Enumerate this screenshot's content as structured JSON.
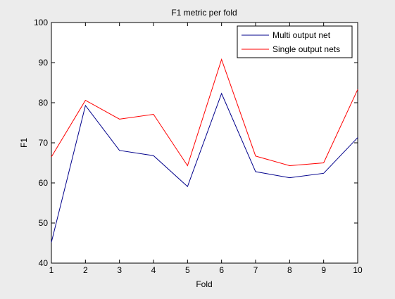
{
  "chart_data": {
    "type": "line",
    "title": "F1 metric per fold",
    "xlabel": "Fold",
    "ylabel": "F1",
    "x": [
      1,
      2,
      3,
      4,
      5,
      6,
      7,
      8,
      9,
      10
    ],
    "xlim": [
      1,
      10
    ],
    "ylim": [
      40,
      100
    ],
    "xticks": [
      "1",
      "2",
      "3",
      "4",
      "5",
      "6",
      "7",
      "8",
      "9",
      "10"
    ],
    "yticks": [
      "40",
      "50",
      "60",
      "70",
      "80",
      "90",
      "100"
    ],
    "grid": false,
    "legend_position": "top-right",
    "series": [
      {
        "name": "Multi output net",
        "color": "#00008b",
        "values": [
          45.2,
          79.3,
          68.1,
          66.8,
          59.1,
          82.3,
          62.8,
          61.3,
          62.4,
          71.3
        ]
      },
      {
        "name": "Single output nets",
        "color": "#ff0000",
        "values": [
          66.5,
          80.6,
          75.9,
          77.1,
          64.3,
          90.8,
          66.7,
          64.3,
          65.0,
          83.3
        ]
      }
    ]
  }
}
